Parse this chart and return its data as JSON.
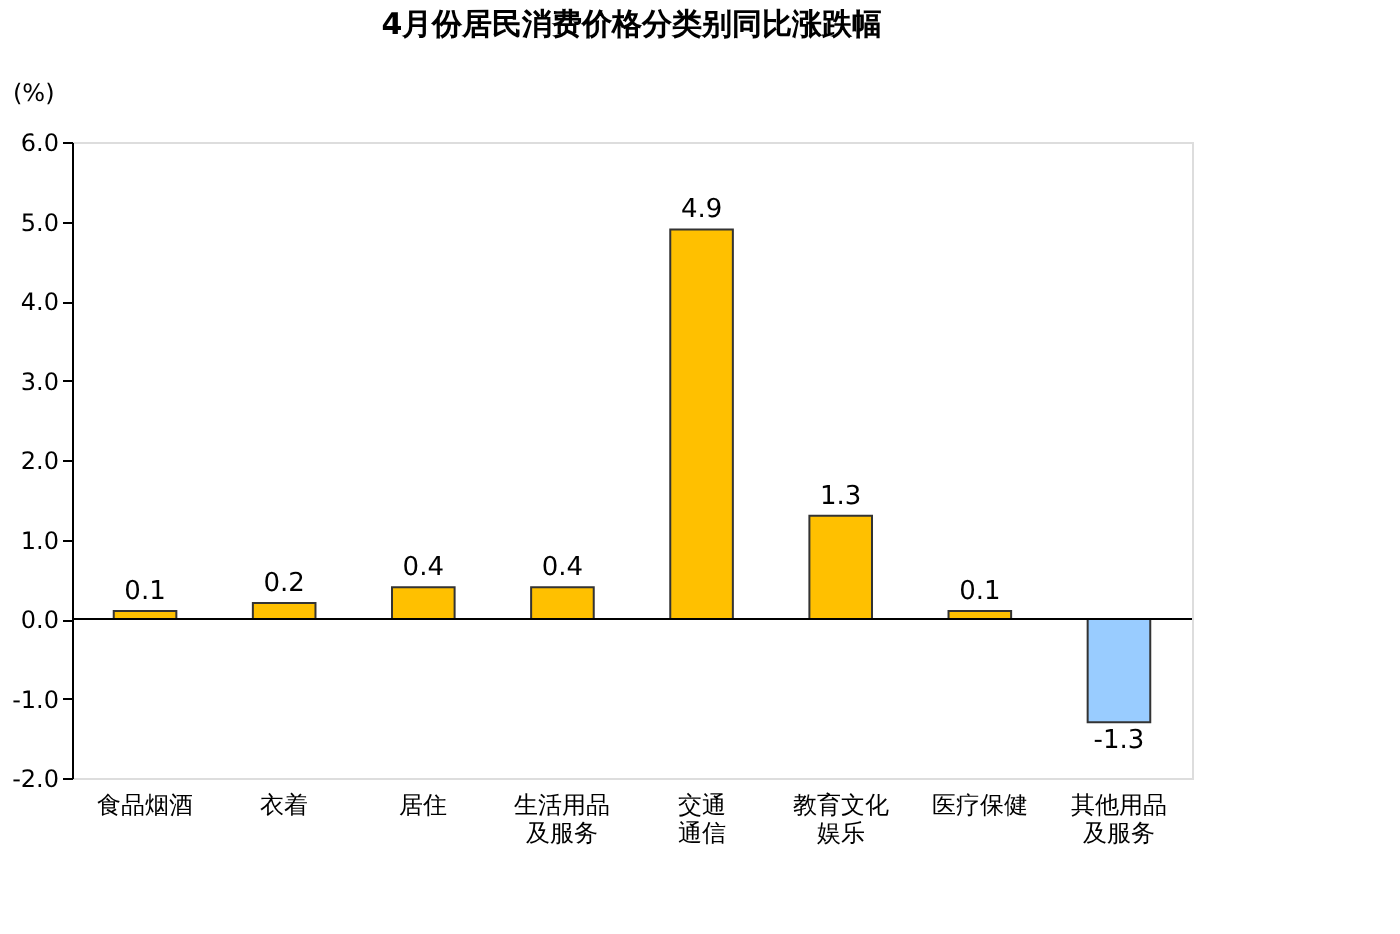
{
  "chart_data": {
    "type": "bar",
    "title": "4月份居民消费价格分类别同比涨跌幅",
    "ylabel": "(%)",
    "categories": [
      "食品烟酒",
      "衣着",
      "居住",
      "生活用品及服务",
      "交通通信",
      "教育文化娱乐",
      "医疗保健",
      "其他用品及服务"
    ],
    "values": [
      0.1,
      0.2,
      0.4,
      0.4,
      4.9,
      1.3,
      0.1,
      -1.3
    ],
    "colors": [
      "#ffc000",
      "#ffc000",
      "#ffc000",
      "#ffc000",
      "#ffc000",
      "#ffc000",
      "#ffc000",
      "#99ccff"
    ],
    "ylim": [
      -2.0,
      6.0
    ],
    "yticks": [
      {
        "value": -2,
        "label": "-2.0"
      },
      {
        "value": -1,
        "label": "-1.0"
      },
      {
        "value": 0,
        "label": "0.0"
      },
      {
        "value": 1,
        "label": "1.0"
      },
      {
        "value": 2,
        "label": "2.0"
      },
      {
        "value": 3,
        "label": "3.0"
      },
      {
        "value": 4,
        "label": "4.0"
      },
      {
        "value": 5,
        "label": "5.0"
      },
      {
        "value": 6,
        "label": "6.0"
      }
    ],
    "ref_lines": [
      {
        "axis": "y",
        "value": 0
      }
    ],
    "data_labels": true
  }
}
